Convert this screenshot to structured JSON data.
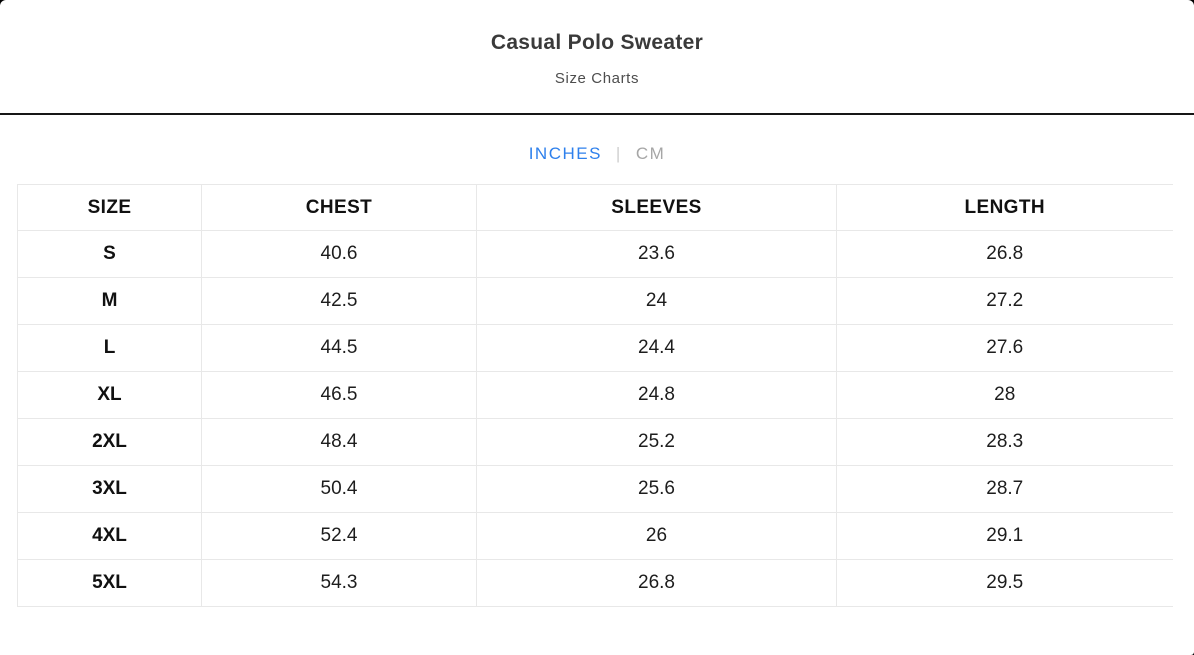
{
  "header": {
    "title": "Casual Polo Sweater",
    "subtitle": "Size Charts"
  },
  "unit_toggle": {
    "options": [
      {
        "label": "INCHES",
        "active": true
      },
      {
        "label": "CM",
        "active": false
      }
    ],
    "separator": "|"
  },
  "colors": {
    "accent_blue": "#2e80ec",
    "inactive_gray": "#a6a6a6",
    "header_divider": "#161616",
    "table_border": "#e8e8e8"
  },
  "table": {
    "columns": [
      "SIZE",
      "CHEST",
      "SLEEVES",
      "LENGTH"
    ],
    "rows": [
      [
        "S",
        "40.6",
        "23.6",
        "26.8"
      ],
      [
        "M",
        "42.5",
        "24",
        "27.2"
      ],
      [
        "L",
        "44.5",
        "24.4",
        "27.6"
      ],
      [
        "XL",
        "46.5",
        "24.8",
        "28"
      ],
      [
        "2XL",
        "48.4",
        "25.2",
        "28.3"
      ],
      [
        "3XL",
        "50.4",
        "25.6",
        "28.7"
      ],
      [
        "4XL",
        "52.4",
        "26",
        "29.1"
      ],
      [
        "5XL",
        "54.3",
        "26.8",
        "29.5"
      ]
    ]
  }
}
